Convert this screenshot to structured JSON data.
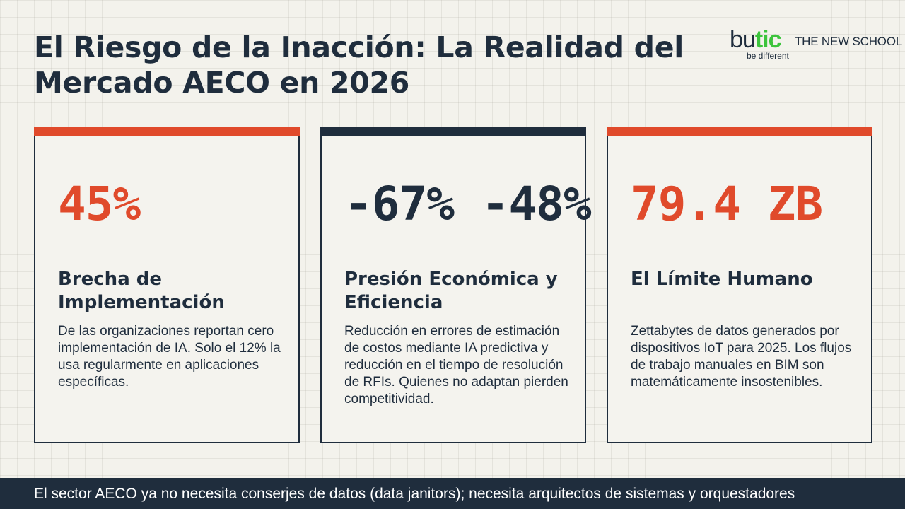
{
  "title": "El Riesgo de la Inacción: La Realidad del Mercado AECO en 2026",
  "logo": {
    "brand_prefix": "bu",
    "brand_accent": "tic",
    "school": "THE NEW SCHOOL",
    "tagline": "be different",
    "accent_color": "#3cc43c"
  },
  "colors": {
    "orange_accent": "#e04a2b",
    "navy": "#1f2d3d"
  },
  "cards": [
    {
      "stat": "45%",
      "heading": "Brecha de Implementación",
      "body": "De las organizaciones reportan cero implementación de IA. Solo el 12% la usa regularmente en aplicaciones específicas."
    },
    {
      "stat": "-67% -48%",
      "heading": "Presión Económica y Eficiencia",
      "body": "Reducción en errores de estimación de costos mediante IA predictiva y reducción en el tiempo de resolución de RFIs. Quienes no adaptan pierden competitividad."
    },
    {
      "stat": "79.4 ZB",
      "heading": "El Límite Humano",
      "body": "Zettabytes de datos generados por dispositivos IoT para 2025. Los flujos de trabajo manuales en BIM son matemáticamente insostenibles."
    }
  ],
  "footer": {
    "text": "El sector AECO ya no necesita conserjes de datos (data janitors); necesita arquitectos de sistemas y orquestadores"
  }
}
